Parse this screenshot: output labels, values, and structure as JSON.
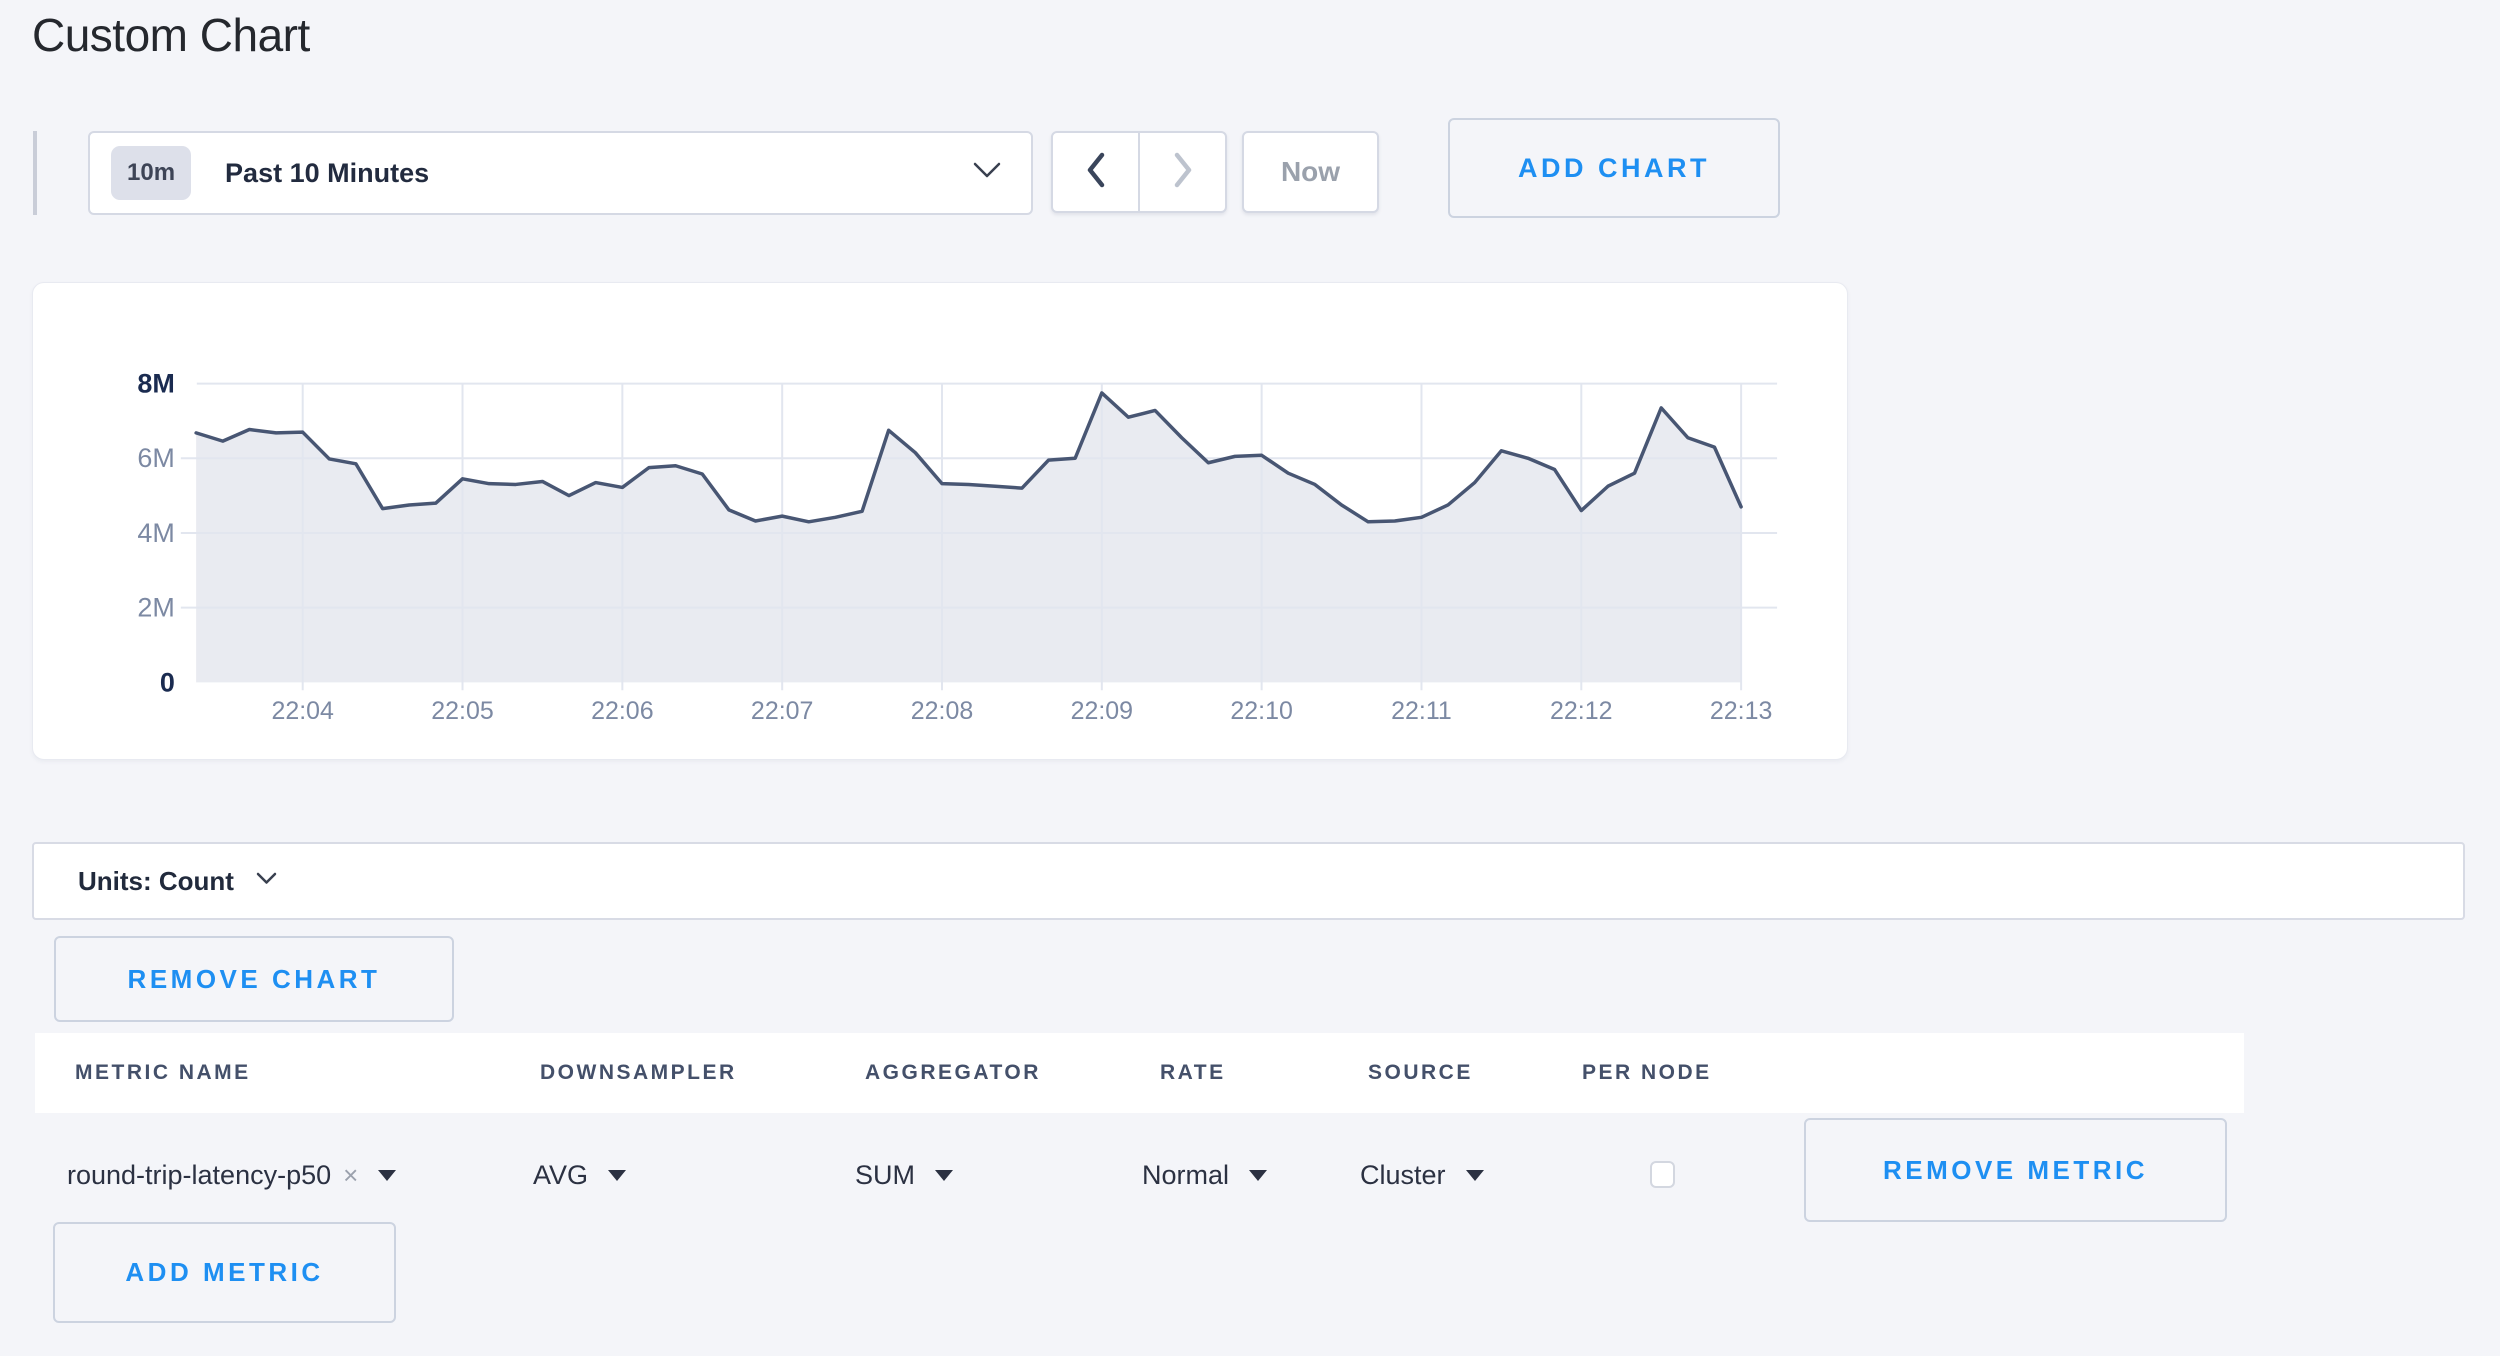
{
  "page": {
    "title": "Custom Chart",
    "background_color": "#f4f5f9",
    "accent_blue": "#1e8ff2"
  },
  "toolbar": {
    "time_window": {
      "badge": "10m",
      "label": "Past 10 Minutes"
    },
    "prev_icon": "chevron-left",
    "next_icon": "chevron-right-disabled",
    "now_label": "Now",
    "add_chart_label": "ADD CHART"
  },
  "chart_data": {
    "type": "area",
    "title": "",
    "units": "Count",
    "time_start": "22:03:20",
    "point_interval_seconds": 10,
    "x_ticks": [
      "22:04",
      "22:05",
      "22:06",
      "22:07",
      "22:08",
      "22:09",
      "22:10",
      "22:11",
      "22:12",
      "22:13"
    ],
    "y_axis": [
      {
        "label": "8M",
        "value": 8,
        "strong": true
      },
      {
        "label": "6M",
        "value": 6,
        "strong": false
      },
      {
        "label": "4M",
        "value": 4,
        "strong": false
      },
      {
        "label": "2M",
        "value": 2,
        "strong": false
      },
      {
        "label": "0",
        "value": 0,
        "strong": true
      }
    ],
    "ylim": [
      0,
      8000000
    ],
    "grid": true,
    "legend": "none",
    "values_millions": [
      6.68,
      6.46,
      6.77,
      6.68,
      6.7,
      5.98,
      5.85,
      4.65,
      4.75,
      4.8,
      5.45,
      5.32,
      5.3,
      5.38,
      5.0,
      5.35,
      5.22,
      5.75,
      5.8,
      5.58,
      4.62,
      4.32,
      4.45,
      4.3,
      4.42,
      4.58,
      6.75,
      6.15,
      5.32,
      5.3,
      5.25,
      5.2,
      5.95,
      6.0,
      7.75,
      7.1,
      7.28,
      6.55,
      5.88,
      6.05,
      6.08,
      5.6,
      5.3,
      4.75,
      4.3,
      4.32,
      4.42,
      4.75,
      5.35,
      6.2,
      6.0,
      5.7,
      4.6,
      5.25,
      5.6,
      7.35,
      6.55,
      6.3,
      4.7
    ],
    "line_color": "#485673",
    "fill_color": "#e9ebf1",
    "grid_color": "#e2e6ef",
    "tick_label_color": "#7c89a3",
    "strong_tick_color": "#1a2b50"
  },
  "units_bar": {
    "label": "Units: Count"
  },
  "chart_actions": {
    "remove_chart_label": "REMOVE CHART",
    "add_metric_label": "ADD METRIC",
    "remove_metric_label": "REMOVE METRIC"
  },
  "metrics_table": {
    "columns": [
      "METRIC NAME",
      "DOWNSAMPLER",
      "AGGREGATOR",
      "RATE",
      "SOURCE",
      "PER NODE"
    ],
    "rows": [
      {
        "metric_name": "round-trip-latency-p50",
        "clear_label": "×",
        "downsampler": "AVG",
        "aggregator": "SUM",
        "rate": "Normal",
        "source": "Cluster",
        "per_node_checked": false
      }
    ]
  }
}
